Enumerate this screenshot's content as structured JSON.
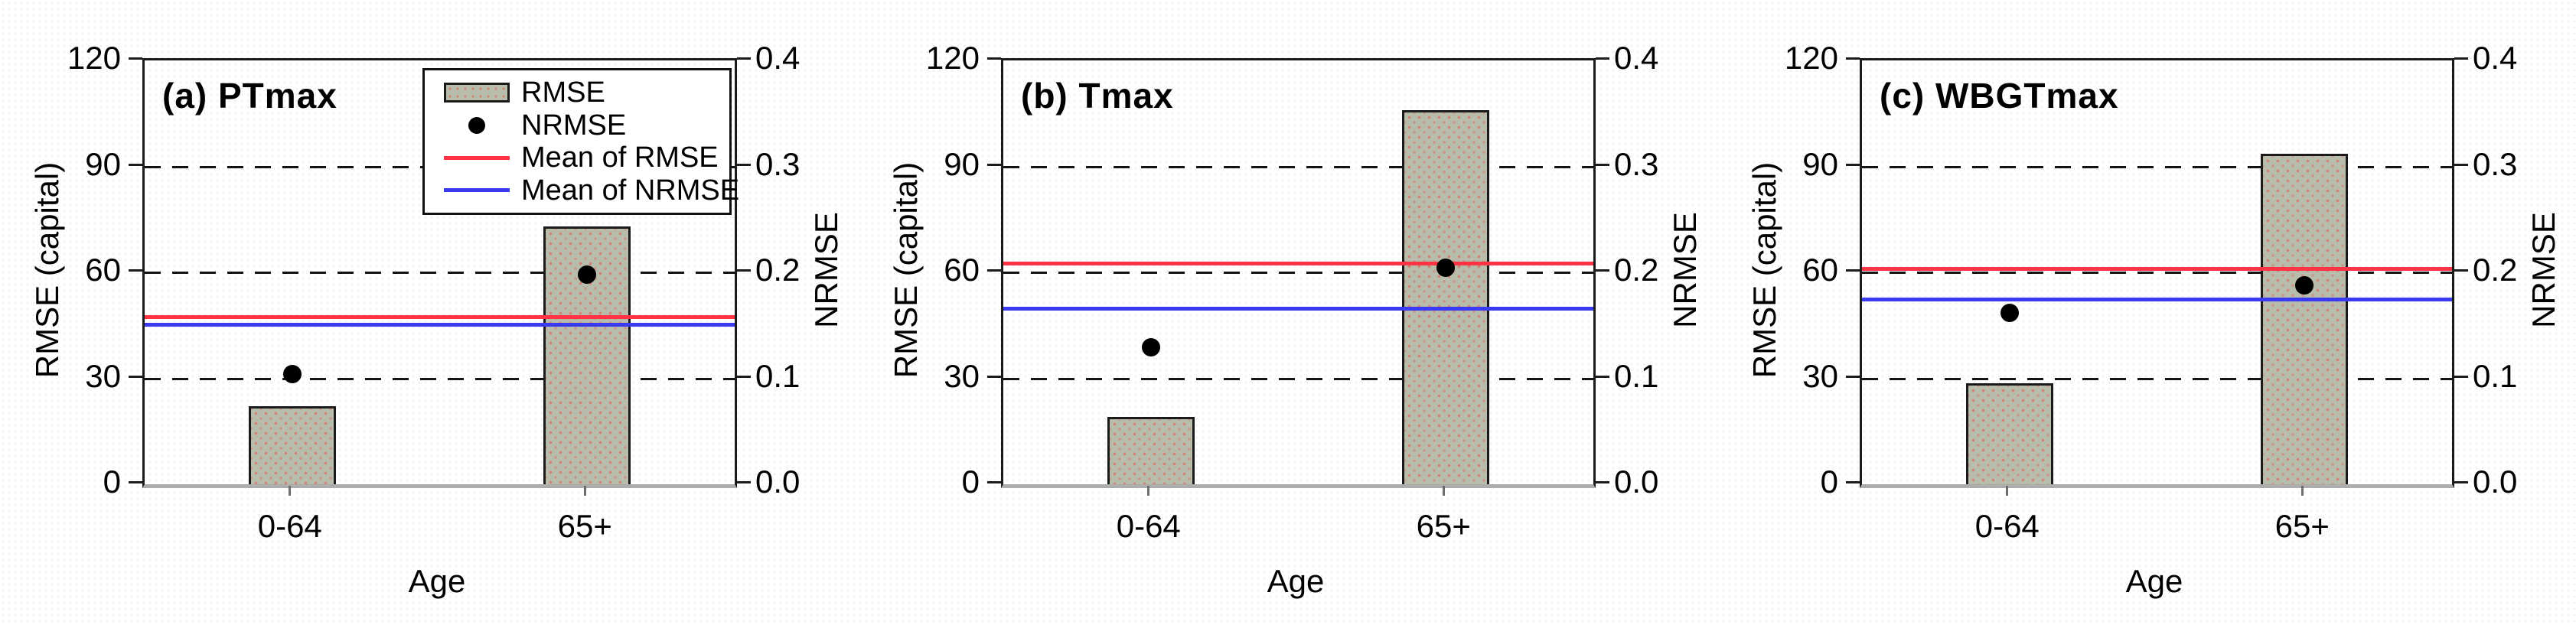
{
  "axes": {
    "left_label": "RMSE (capital)",
    "right_label": "NRMSE",
    "x_label": "Age",
    "left_max": 120,
    "right_max": 0.4,
    "left_ticks": [
      0,
      30,
      60,
      90,
      120
    ],
    "left_tick_labels": [
      "0",
      "30",
      "60",
      "90",
      "120"
    ],
    "right_ticks": [
      0.0,
      0.1,
      0.2,
      0.3,
      0.4
    ],
    "right_tick_labels": [
      "0.0",
      "0.1",
      "0.2",
      "0.3",
      "0.4"
    ],
    "grid_values": [
      30,
      60,
      90
    ],
    "grid_style": "dashed"
  },
  "legend": {
    "location": "inside-top-right-of-panel-a",
    "items": [
      {
        "label": "RMSE",
        "swatch": "stippled-bar"
      },
      {
        "label": "NRMSE",
        "swatch": "black-dot"
      },
      {
        "label": "Mean of RMSE",
        "swatch": "red-line"
      },
      {
        "label": "Mean of NRMSE",
        "swatch": "blue-line"
      }
    ]
  },
  "colors": {
    "bar_fill": "#b8bcab",
    "bar_stipple": "#d67a6e",
    "bar_border": "#1a1a1a",
    "nrmse_dot": "#000000",
    "mean_rmse_line": "#ff3344",
    "mean_nrmse_line": "#3a3af2",
    "gridline": "#141414",
    "axis_frame": "#1b1b1b",
    "x_baseline": "#adadad"
  },
  "chart_data": [
    {
      "type": "bar",
      "title": "(a) PTmax",
      "categories": [
        "0-64",
        "65+"
      ],
      "series": [
        {
          "name": "RMSE",
          "axis": "left",
          "values": [
            22,
            73
          ]
        },
        {
          "name": "NRMSE",
          "axis": "right",
          "values": [
            0.104,
            0.198
          ]
        }
      ],
      "mean_of_rmse": 47.5,
      "mean_of_nrmse": 0.151,
      "xlabel": "Age",
      "ylabel_left": "RMSE (capital)",
      "ylabel_right": "NRMSE",
      "ylim_left": [
        0,
        120
      ],
      "ylim_right": [
        0,
        0.4
      ],
      "has_legend": true
    },
    {
      "type": "bar",
      "title": "(b) Tmax",
      "categories": [
        "0-64",
        "65+"
      ],
      "series": [
        {
          "name": "RMSE",
          "axis": "left",
          "values": [
            19,
            106
          ]
        },
        {
          "name": "NRMSE",
          "axis": "right",
          "values": [
            0.129,
            0.204
          ]
        }
      ],
      "mean_of_rmse": 62.5,
      "mean_of_nrmse": 0.166,
      "xlabel": "Age",
      "ylabel_left": "RMSE (capital)",
      "ylabel_right": "NRMSE",
      "ylim_left": [
        0,
        120
      ],
      "ylim_right": [
        0,
        0.4
      ],
      "has_legend": false
    },
    {
      "type": "bar",
      "title": "(c) WBGTmax",
      "categories": [
        "0-64",
        "65+"
      ],
      "series": [
        {
          "name": "RMSE",
          "axis": "left",
          "values": [
            28.5,
            93.5
          ]
        },
        {
          "name": "NRMSE",
          "axis": "right",
          "values": [
            0.162,
            0.188
          ]
        }
      ],
      "mean_of_rmse": 61,
      "mean_of_nrmse": 0.175,
      "xlabel": "Age",
      "ylabel_left": "RMSE (capital)",
      "ylabel_right": "NRMSE",
      "ylim_left": [
        0,
        120
      ],
      "ylim_right": [
        0,
        0.4
      ],
      "has_legend": false
    }
  ]
}
